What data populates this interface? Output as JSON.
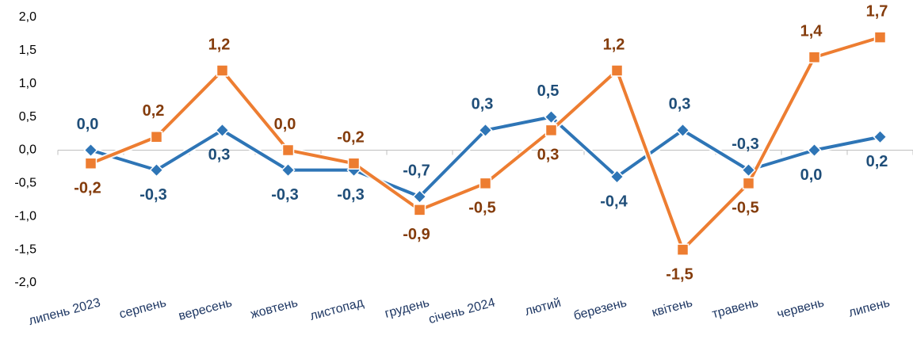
{
  "chart_data": {
    "type": "line",
    "categories": [
      "липень 2023",
      "серпень",
      "вересень",
      "жовтень",
      "листопад",
      "грудень",
      "січень 2024",
      "лютий",
      "березень",
      "квітень",
      "травень",
      "червень",
      "липень"
    ],
    "series": [
      {
        "color": "#2e75b6",
        "label_color": "#1f4e79",
        "marker": "diamond",
        "values": [
          0.0,
          -0.3,
          0.3,
          -0.3,
          -0.3,
          -0.7,
          0.3,
          0.5,
          -0.4,
          0.3,
          -0.3,
          0.0,
          0.2
        ],
        "value_labels": [
          "0,0",
          "-0,3",
          "0,3",
          "-0,3",
          "-0,3",
          "-0,7",
          "0,3",
          "0,5",
          "-0,4",
          "0,3",
          "-0,3",
          "0,0",
          "0,2"
        ]
      },
      {
        "color": "#ed7d31",
        "label_color": "#843c0c",
        "marker": "square",
        "values": [
          -0.2,
          0.2,
          1.2,
          0.0,
          -0.2,
          -0.9,
          -0.5,
          0.3,
          1.2,
          -1.5,
          -0.5,
          1.4,
          1.7
        ],
        "value_labels": [
          "-0,2",
          "0,2",
          "1,2",
          "0,0",
          "-0,2",
          "-0,9",
          "-0,5",
          "0,3",
          "1,2",
          "-1,5",
          "-0,5",
          "1,4",
          "1,7"
        ]
      }
    ],
    "ylim": [
      -2.0,
      2.0
    ],
    "yticks": [
      {
        "value": 2.0,
        "label": "2,0"
      },
      {
        "value": 1.5,
        "label": "1,5"
      },
      {
        "value": 1.0,
        "label": "1,0"
      },
      {
        "value": 0.5,
        "label": "0,5"
      },
      {
        "value": 0.0,
        "label": "0,0"
      },
      {
        "value": -0.5,
        "label": "-0,5"
      },
      {
        "value": -1.0,
        "label": "-1,0"
      },
      {
        "value": -1.5,
        "label": "-1,5"
      },
      {
        "value": -2.0,
        "label": "-2,0"
      }
    ],
    "grid": false
  }
}
